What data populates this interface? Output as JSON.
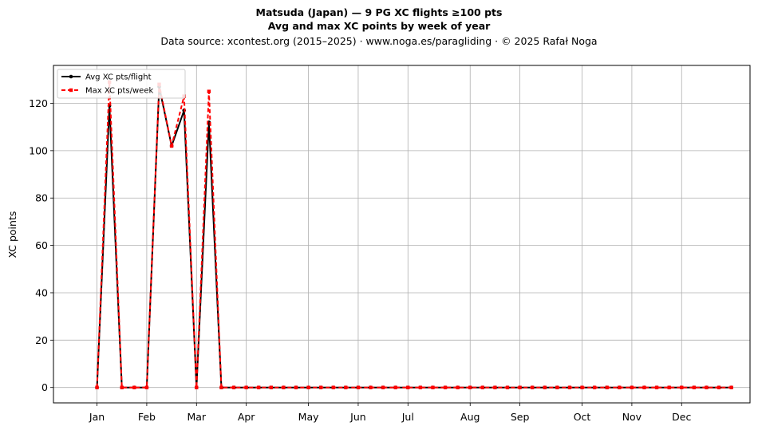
{
  "header": {
    "title_line1": "Matsuda (Japan)  —  9 PG XC flights ≥100 pts",
    "title_line2": "Avg and max XC points by week of year",
    "subtitle": "Data source: xcontest.org (2015–2025)  ·  www.noga.es/paragliding  ·  © 2025 Rafał Noga"
  },
  "chart_data": {
    "type": "line",
    "ylabel": "XC points",
    "xlabel": "",
    "xlim": [
      -2.5,
      53.5
    ],
    "ylim": [
      -6.5,
      136
    ],
    "grid": true,
    "legend_position": "top-left",
    "month_ticks": [
      {
        "label": "Jan",
        "week": 1
      },
      {
        "label": "Feb",
        "week": 5
      },
      {
        "label": "Mar",
        "week": 9
      },
      {
        "label": "Apr",
        "week": 13
      },
      {
        "label": "May",
        "week": 18
      },
      {
        "label": "Jun",
        "week": 22
      },
      {
        "label": "Jul",
        "week": 26
      },
      {
        "label": "Aug",
        "week": 31
      },
      {
        "label": "Sep",
        "week": 35
      },
      {
        "label": "Oct",
        "week": 40
      },
      {
        "label": "Nov",
        "week": 44
      },
      {
        "label": "Dec",
        "week": 48
      }
    ],
    "y_ticks": [
      0,
      20,
      40,
      60,
      80,
      100,
      120
    ],
    "weeks": [
      1,
      2,
      3,
      4,
      5,
      6,
      7,
      8,
      9,
      10,
      11,
      12,
      13,
      14,
      15,
      16,
      17,
      18,
      19,
      20,
      21,
      22,
      23,
      24,
      25,
      26,
      27,
      28,
      29,
      30,
      31,
      32,
      33,
      34,
      35,
      36,
      37,
      38,
      39,
      40,
      41,
      42,
      43,
      44,
      45,
      46,
      47,
      48,
      49,
      50,
      51,
      52
    ],
    "series": [
      {
        "name": "Avg XC pts/flight",
        "color": "#000000",
        "marker": "circle",
        "linestyle": "solid",
        "values": [
          0,
          119,
          0,
          0,
          0,
          127,
          102,
          117,
          0,
          112,
          0,
          0,
          0,
          0,
          0,
          0,
          0,
          0,
          0,
          0,
          0,
          0,
          0,
          0,
          0,
          0,
          0,
          0,
          0,
          0,
          0,
          0,
          0,
          0,
          0,
          0,
          0,
          0,
          0,
          0,
          0,
          0,
          0,
          0,
          0,
          0,
          0,
          0,
          0,
          0,
          0,
          0
        ]
      },
      {
        "name": "Max XC pts/week",
        "color": "#ff0000",
        "marker": "square",
        "linestyle": "dashed",
        "values": [
          0,
          129,
          0,
          0,
          0,
          128,
          102,
          123,
          0,
          125,
          0,
          0,
          0,
          0,
          0,
          0,
          0,
          0,
          0,
          0,
          0,
          0,
          0,
          0,
          0,
          0,
          0,
          0,
          0,
          0,
          0,
          0,
          0,
          0,
          0,
          0,
          0,
          0,
          0,
          0,
          0,
          0,
          0,
          0,
          0,
          0,
          0,
          0,
          0,
          0,
          0,
          0
        ]
      }
    ]
  }
}
